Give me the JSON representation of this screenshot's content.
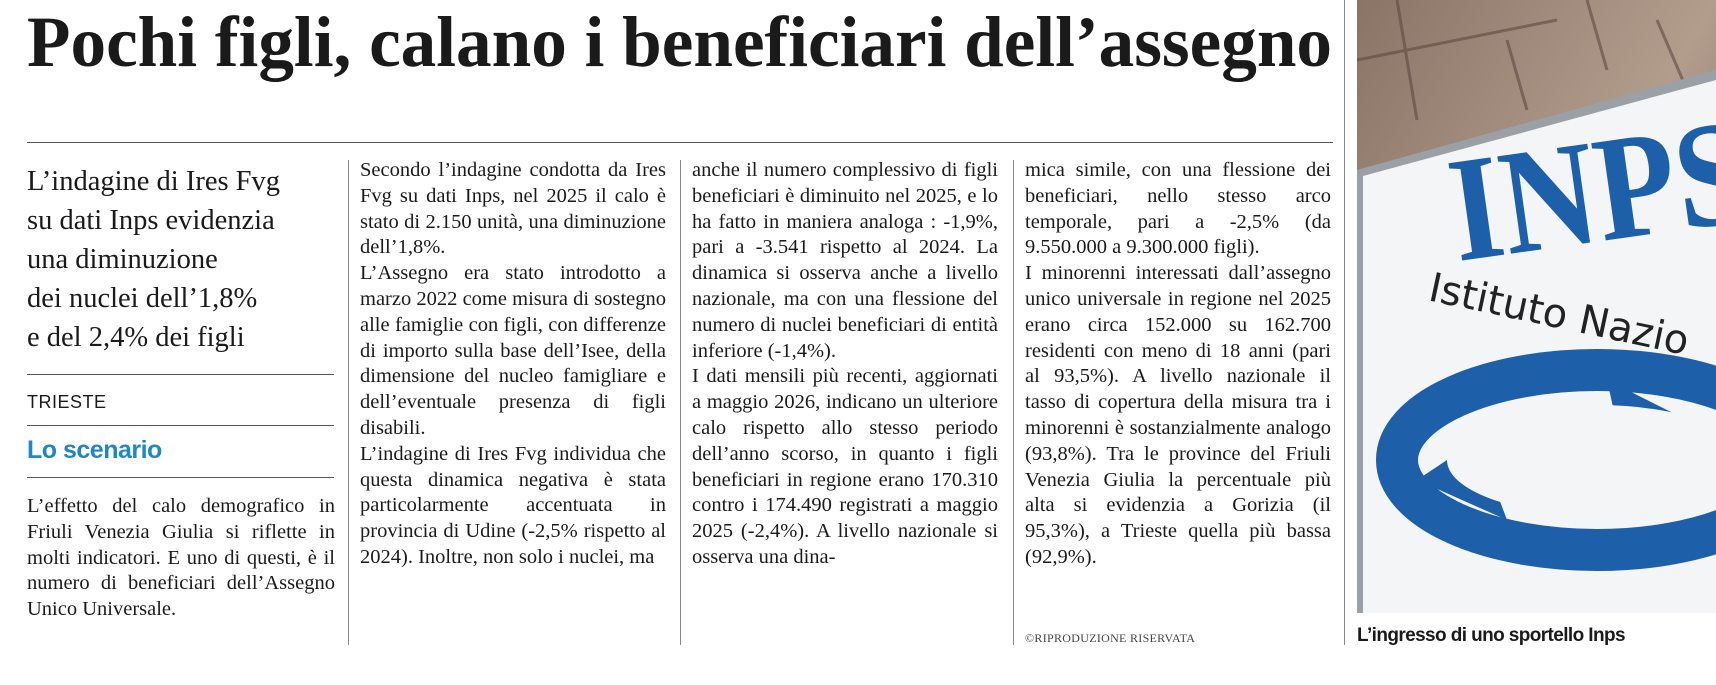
{
  "header": {
    "title": "Pochi figli, calano i beneficiari dell’assegno"
  },
  "intro": {
    "lines": [
      "L’indagine di Ires Fvg",
      "su dati Inps evidenzia",
      "una diminuzione",
      "dei nuclei dell’1,8%",
      "e del 2,4% dei figli"
    ]
  },
  "location": "TRIESTE",
  "section": "Lo scenario",
  "lead": "L’effetto del calo demografico in Friuli Venezia Giulia si riflette in molti indicatori. E uno di questi, è il numero di beneficiari dell’Assegno Unico Universale.",
  "columns": [
    [
      "Secondo l’indagine condotta da Ires Fvg su dati Inps, nel 2025 il calo è stato di 2.150 unità, una diminuzione dell’1,8%.",
      "L’Assegno era stato introdotto a marzo 2022 come misura di sostegno alle famiglie con figli, con differenze di importo sulla base dell’Isee, della dimensione del nucleo famigliare e dell’eventuale presenza di figli disabili.",
      "L’indagine di Ires Fvg individua che questa dinamica negativa è stata particolarmente accentuata in provincia di Udine (-2,5% rispetto al 2024). Inoltre, non solo i nuclei, ma"
    ],
    [
      "anche il numero complessivo di figli beneficiari è diminuito nel 2025, e lo ha fatto in maniera analoga : -1,9%, pari a -3.541 rispetto al 2024. La dinamica si osserva anche a livello nazionale, ma con una flessione del numero di nuclei beneficiari di entità inferiore (-1,4%).",
      "I dati mensili più recenti, aggiornati a maggio 2026, indicano un ulteriore calo rispetto allo stesso periodo dell’anno scorso, in quanto i figli beneficiari in regione erano 170.310 contro i 174.490 registrati a maggio 2025 (-2,4%). A livello nazionale si osserva una dina-"
    ],
    [
      "mica simile, con una flessione dei beneficiari, nello stesso arco temporale, pari a -2,5% (da 9.550.000 a 9.300.000 figli).",
      "I minorenni interessati dall’assegno unico universale in regione nel 2025 erano circa 152.000 su 162.700 residenti con meno di 18 anni (pari al 93,5%). A livello nazionale il tasso di copertura della misura tra i minorenni è sostanzialmente analogo (93,8%). Tra le province del Friuli Venezia Giulia la percentuale più alta si evidenzia a Gorizia (il 95,3%), a Trieste quella più bassa (92,9%)."
    ]
  ],
  "copyright": "©RIPRODUZIONE RISERVATA",
  "photo": {
    "logo": "INPS",
    "sign_text": "Istituto Nazio",
    "caption": "L’ingresso di uno sportello Inps"
  }
}
